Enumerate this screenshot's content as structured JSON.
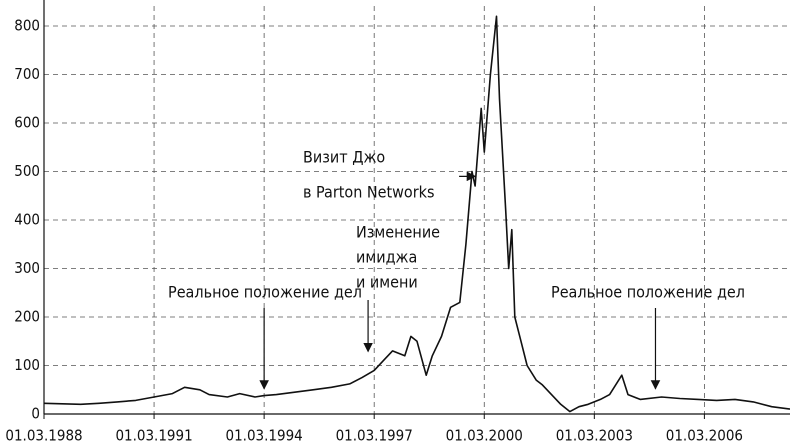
{
  "chart_data": {
    "type": "line",
    "x": [
      "1988-03",
      "1988-09",
      "1989-03",
      "1989-09",
      "1990-03",
      "1990-09",
      "1991-03",
      "1991-09",
      "1992-01",
      "1992-06",
      "1992-09",
      "1993-03",
      "1993-07",
      "1993-12",
      "1994-03",
      "1994-07",
      "1995-01",
      "1995-07",
      "1996-01",
      "1996-07",
      "1996-11",
      "1997-03",
      "1997-06",
      "1997-09",
      "1998-01",
      "1998-03",
      "1998-05",
      "1998-08",
      "1998-10",
      "1999-01",
      "1999-04",
      "1999-07",
      "1999-09",
      "1999-11",
      "1999-12",
      "2000-02",
      "2000-03",
      "2000-05",
      "2000-07",
      "2000-08",
      "2000-10",
      "2000-11",
      "2000-12",
      "2001-01",
      "2001-03",
      "2001-05",
      "2001-08",
      "2001-10",
      "2002-01",
      "2002-04",
      "2002-07",
      "2002-10",
      "2003-01",
      "2003-05",
      "2003-08",
      "2003-12",
      "2004-02",
      "2004-06",
      "2005-01",
      "2005-07",
      "2006-01",
      "2006-07",
      "2007-01",
      "2007-07",
      "2008-01",
      "2008-07"
    ],
    "series": [
      {
        "color": "#111111",
        "values": [
          22,
          21,
          20,
          22,
          25,
          28,
          35,
          42,
          55,
          50,
          40,
          35,
          42,
          35,
          38,
          40,
          45,
          50,
          55,
          62,
          75,
          90,
          110,
          130,
          120,
          160,
          150,
          80,
          120,
          160,
          220,
          230,
          350,
          500,
          470,
          630,
          540,
          700,
          820,
          650,
          420,
          300,
          380,
          200,
          150,
          100,
          70,
          60,
          40,
          20,
          5,
          15,
          20,
          30,
          40,
          80,
          40,
          30,
          35,
          32,
          30,
          28,
          30,
          25,
          15,
          10
        ]
      }
    ],
    "xlim": [
      "1988-03",
      "2008-07"
    ],
    "xticks": [
      {
        "value": "1988-03",
        "label": "01.03.1988"
      },
      {
        "value": "1991-03",
        "label": "01.03.1991"
      },
      {
        "value": "1994-03",
        "label": "01.03.1994"
      },
      {
        "value": "1997-03",
        "label": "01.03.1997"
      },
      {
        "value": "2000-03",
        "label": "01.03.2000"
      },
      {
        "value": "2003-03",
        "label": "01.03.2003"
      },
      {
        "value": "2006-03",
        "label": "01.03.2006"
      }
    ],
    "ylim": [
      0,
      800
    ],
    "yticks": [
      0,
      100,
      200,
      300,
      400,
      500,
      600,
      700,
      800
    ],
    "grid": true,
    "annotations": [
      {
        "lines": [
          "Реальное положение дел"
        ],
        "x": "1994-03",
        "y": 40
      },
      {
        "lines": [
          "Изменение",
          "имиджа",
          "и имени"
        ],
        "x": "1997-01",
        "y": 117
      },
      {
        "lines": [
          "Визит Джо",
          "в Parton Networks"
        ],
        "x": "1999-12",
        "y": 490
      },
      {
        "lines": [
          "Реальное положение дел"
        ],
        "x": "2004-11",
        "y": 40
      }
    ]
  }
}
